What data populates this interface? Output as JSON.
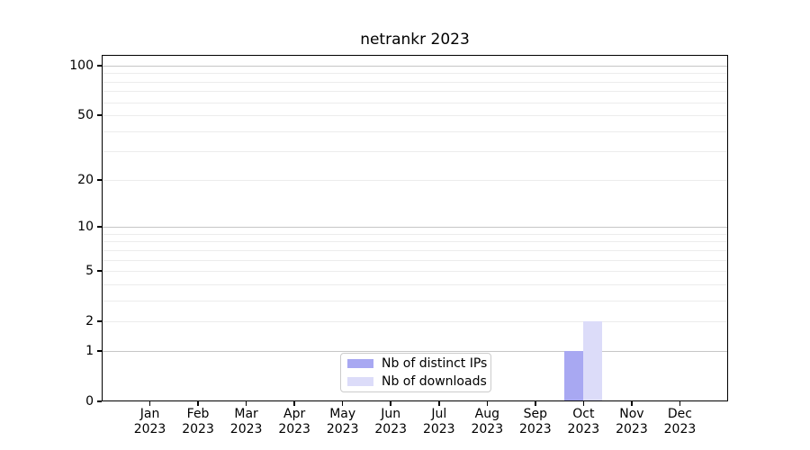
{
  "chart_data": {
    "type": "bar",
    "title": "netrankr 2023",
    "categories": [
      "Jan 2023",
      "Feb 2023",
      "Mar 2023",
      "Apr 2023",
      "May 2023",
      "Jun 2023",
      "Jul 2023",
      "Aug 2023",
      "Sep 2023",
      "Oct 2023",
      "Nov 2023",
      "Dec 2023"
    ],
    "x_tick_month_line": [
      "Jan",
      "Feb",
      "Mar",
      "Apr",
      "May",
      "Jun",
      "Jul",
      "Aug",
      "Sep",
      "Oct",
      "Nov",
      "Dec"
    ],
    "x_tick_year_line": "2023",
    "series": [
      {
        "name": "Nb of distinct IPs",
        "color": "#a8a8f2",
        "values": [
          0,
          0,
          0,
          0,
          0,
          0,
          0,
          0,
          0,
          1,
          0,
          0
        ]
      },
      {
        "name": "Nb of downloads",
        "color": "#dcdcf9",
        "values": [
          0,
          0,
          0,
          0,
          0,
          0,
          0,
          0,
          0,
          2,
          0,
          0
        ]
      }
    ],
    "xlabel": "",
    "ylabel": "",
    "yscale": "log10(1+value)",
    "ytick_values": [
      0,
      1,
      2,
      5,
      10,
      20,
      50,
      100
    ],
    "ytick_labels": [
      "0",
      "1",
      "2",
      "5",
      "10",
      "20",
      "50",
      "100"
    ],
    "major_grid_values": [
      1,
      10,
      100
    ],
    "minor_grid_values": [
      2,
      3,
      4,
      5,
      6,
      7,
      8,
      9,
      20,
      30,
      40,
      50,
      60,
      70,
      80,
      90
    ],
    "ylim": [
      0,
      116
    ],
    "grid": true,
    "legend_position": "lower-center-inside"
  },
  "colors": {
    "background": "#ffffff",
    "spine": "#000000",
    "grid_major": "#c6c6c6",
    "grid_minor": "#ececec",
    "legend_border": "#cccccc",
    "text": "#000000"
  }
}
